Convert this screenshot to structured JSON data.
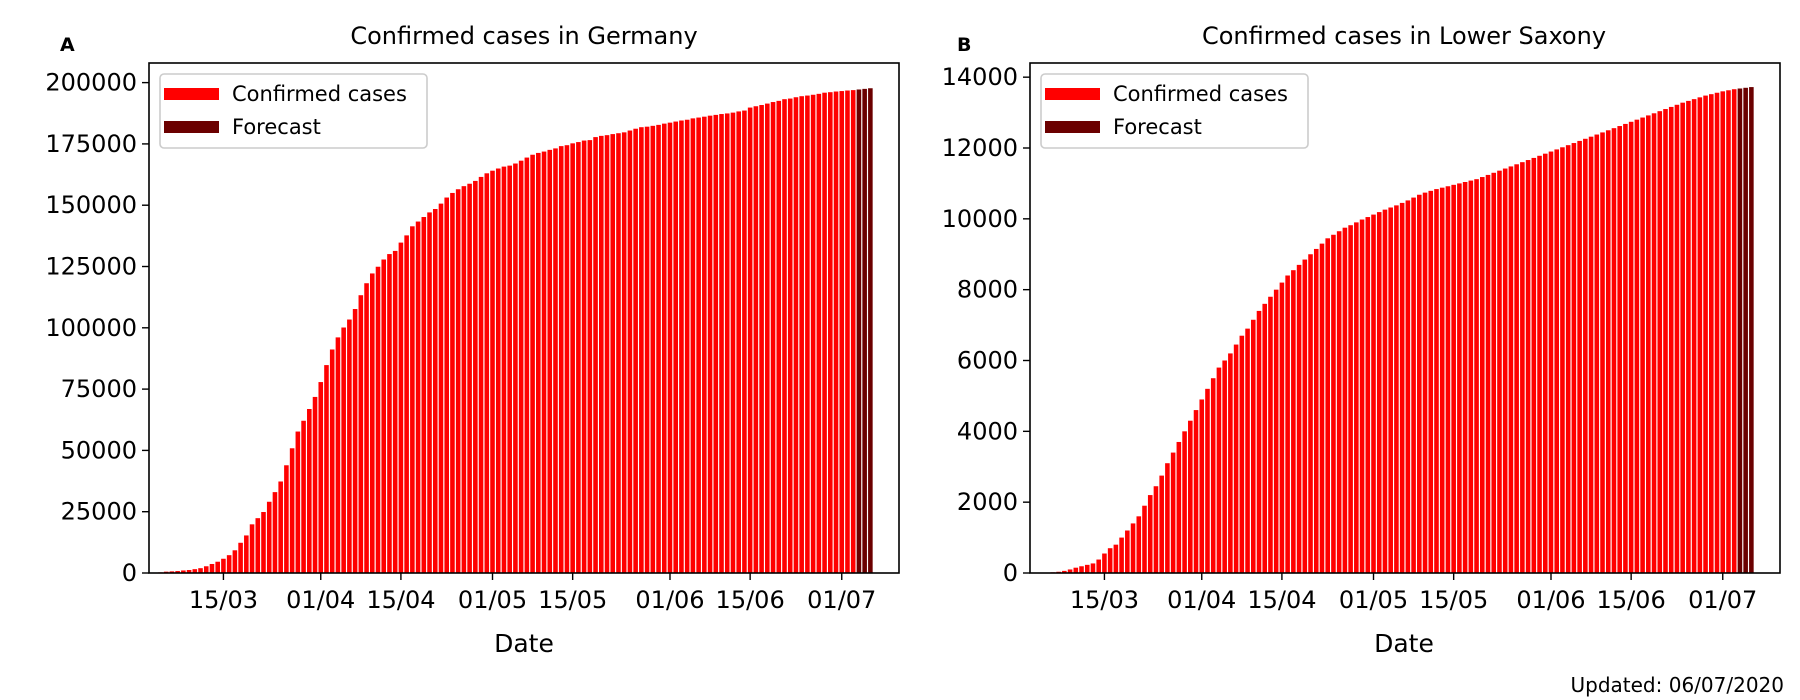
{
  "footer": {
    "updated": "Updated: 06/07/2020"
  },
  "colors": {
    "confirmed": "#ff0000",
    "forecast": "#6b0000",
    "axis": "#000000"
  },
  "chart_data": [
    {
      "panel_label": "A",
      "type": "bar",
      "title": "Confirmed cases in Germany",
      "xlabel": "Date",
      "ylabel": "",
      "ylim": [
        0,
        208000
      ],
      "yticks": [
        0,
        25000,
        50000,
        75000,
        100000,
        125000,
        150000,
        175000,
        200000
      ],
      "xlim": [
        "2020-03-02",
        "2020-07-11"
      ],
      "xticks": [
        {
          "date": "2020-03-15",
          "label": "15/03"
        },
        {
          "date": "2020-04-01",
          "label": "01/04"
        },
        {
          "date": "2020-04-15",
          "label": "15/04"
        },
        {
          "date": "2020-05-01",
          "label": "01/05"
        },
        {
          "date": "2020-05-15",
          "label": "15/05"
        },
        {
          "date": "2020-06-01",
          "label": "01/06"
        },
        {
          "date": "2020-06-15",
          "label": "15/06"
        },
        {
          "date": "2020-07-01",
          "label": "01/07"
        }
      ],
      "legend": {
        "position": "top-left",
        "entries": [
          "Confirmed cases",
          "Forecast"
        ]
      },
      "grid": false,
      "series": [
        {
          "name": "Confirmed cases",
          "start_date": "2020-03-04",
          "values": [
            262,
            545,
            670,
            800,
            1040,
            1224,
            1565,
            1966,
            2745,
            3675,
            4599,
            5813,
            7272,
            9257,
            12327,
            15320,
            19848,
            22364,
            24873,
            29056,
            32986,
            37323,
            43938,
            50871,
            57695,
            62095,
            66885,
            71808,
            77872,
            84794,
            91159,
            96092,
            100123,
            103375,
            107663,
            113296,
            118181,
            122171,
            124908,
            127854,
            130072,
            131359,
            134753,
            137698,
            141397,
            143342,
            145184,
            147065,
            148453,
            150648,
            153129,
            154999,
            156513,
            157770,
            158758,
            159912,
            161539,
            163009,
            164077,
            164967,
            165745,
            166152,
            167007,
            168162,
            169430,
            170588,
            171324,
            171879,
            172576,
            173171,
            174098,
            174478,
            175233,
            175752,
            176369,
            176551,
            177778,
            178281,
            178570,
            179002,
            179364,
            179717,
            180458,
            181196,
            181815,
            182028,
            182370,
            182764,
            183271,
            183678,
            184121,
            184543,
            184861,
            185414,
            185750,
            186109,
            186522,
            186839,
            187184,
            187423,
            187764,
            188252,
            188604,
            189822,
            190359,
            190862,
            191449,
            192079,
            192556,
            193243,
            193499,
            194036,
            194458,
            194725,
            195042,
            195418,
            195893,
            196096,
            196370,
            196554,
            196780,
            196944
          ],
          "forecast_values": [
            197200,
            197450,
            197700
          ]
        }
      ]
    },
    {
      "panel_label": "B",
      "type": "bar",
      "title": "Confirmed cases in Lower Saxony",
      "xlabel": "Date",
      "ylabel": "",
      "ylim": [
        0,
        14400
      ],
      "yticks": [
        0,
        2000,
        4000,
        6000,
        8000,
        10000,
        12000,
        14000
      ],
      "xlim": [
        "2020-03-02",
        "2020-07-11"
      ],
      "xticks": [
        {
          "date": "2020-03-15",
          "label": "15/03"
        },
        {
          "date": "2020-04-01",
          "label": "01/04"
        },
        {
          "date": "2020-04-15",
          "label": "15/04"
        },
        {
          "date": "2020-05-01",
          "label": "01/05"
        },
        {
          "date": "2020-05-15",
          "label": "15/05"
        },
        {
          "date": "2020-06-01",
          "label": "01/06"
        },
        {
          "date": "2020-06-15",
          "label": "15/06"
        },
        {
          "date": "2020-07-01",
          "label": "01/07"
        }
      ],
      "legend": {
        "position": "top-left",
        "entries": [
          "Confirmed cases",
          "Forecast"
        ]
      },
      "grid": false,
      "series": [
        {
          "name": "Confirmed cases",
          "start_date": "2020-03-04",
          "values": [
            5,
            10,
            20,
            35,
            60,
            100,
            150,
            190,
            230,
            270,
            380,
            550,
            700,
            800,
            1000,
            1200,
            1400,
            1600,
            1900,
            2200,
            2450,
            2750,
            3100,
            3400,
            3700,
            4000,
            4300,
            4600,
            4900,
            5200,
            5500,
            5800,
            6000,
            6200,
            6450,
            6700,
            6900,
            7150,
            7400,
            7600,
            7800,
            8000,
            8200,
            8400,
            8550,
            8700,
            8850,
            9000,
            9150,
            9300,
            9450,
            9550,
            9650,
            9750,
            9820,
            9900,
            9980,
            10050,
            10120,
            10190,
            10260,
            10320,
            10380,
            10450,
            10520,
            10600,
            10680,
            10740,
            10790,
            10840,
            10880,
            10920,
            10960,
            11000,
            11040,
            11080,
            11120,
            11180,
            11240,
            11300,
            11360,
            11420,
            11480,
            11540,
            11600,
            11660,
            11720,
            11780,
            11840,
            11900,
            11960,
            12020,
            12080,
            12140,
            12200,
            12260,
            12320,
            12380,
            12440,
            12500,
            12560,
            12620,
            12680,
            12740,
            12800,
            12860,
            12920,
            12980,
            13040,
            13100,
            13160,
            13220,
            13280,
            13330,
            13380,
            13430,
            13480,
            13520,
            13560,
            13600,
            13630,
            13660
          ],
          "forecast_values": [
            13680,
            13700,
            13720
          ]
        }
      ]
    }
  ]
}
